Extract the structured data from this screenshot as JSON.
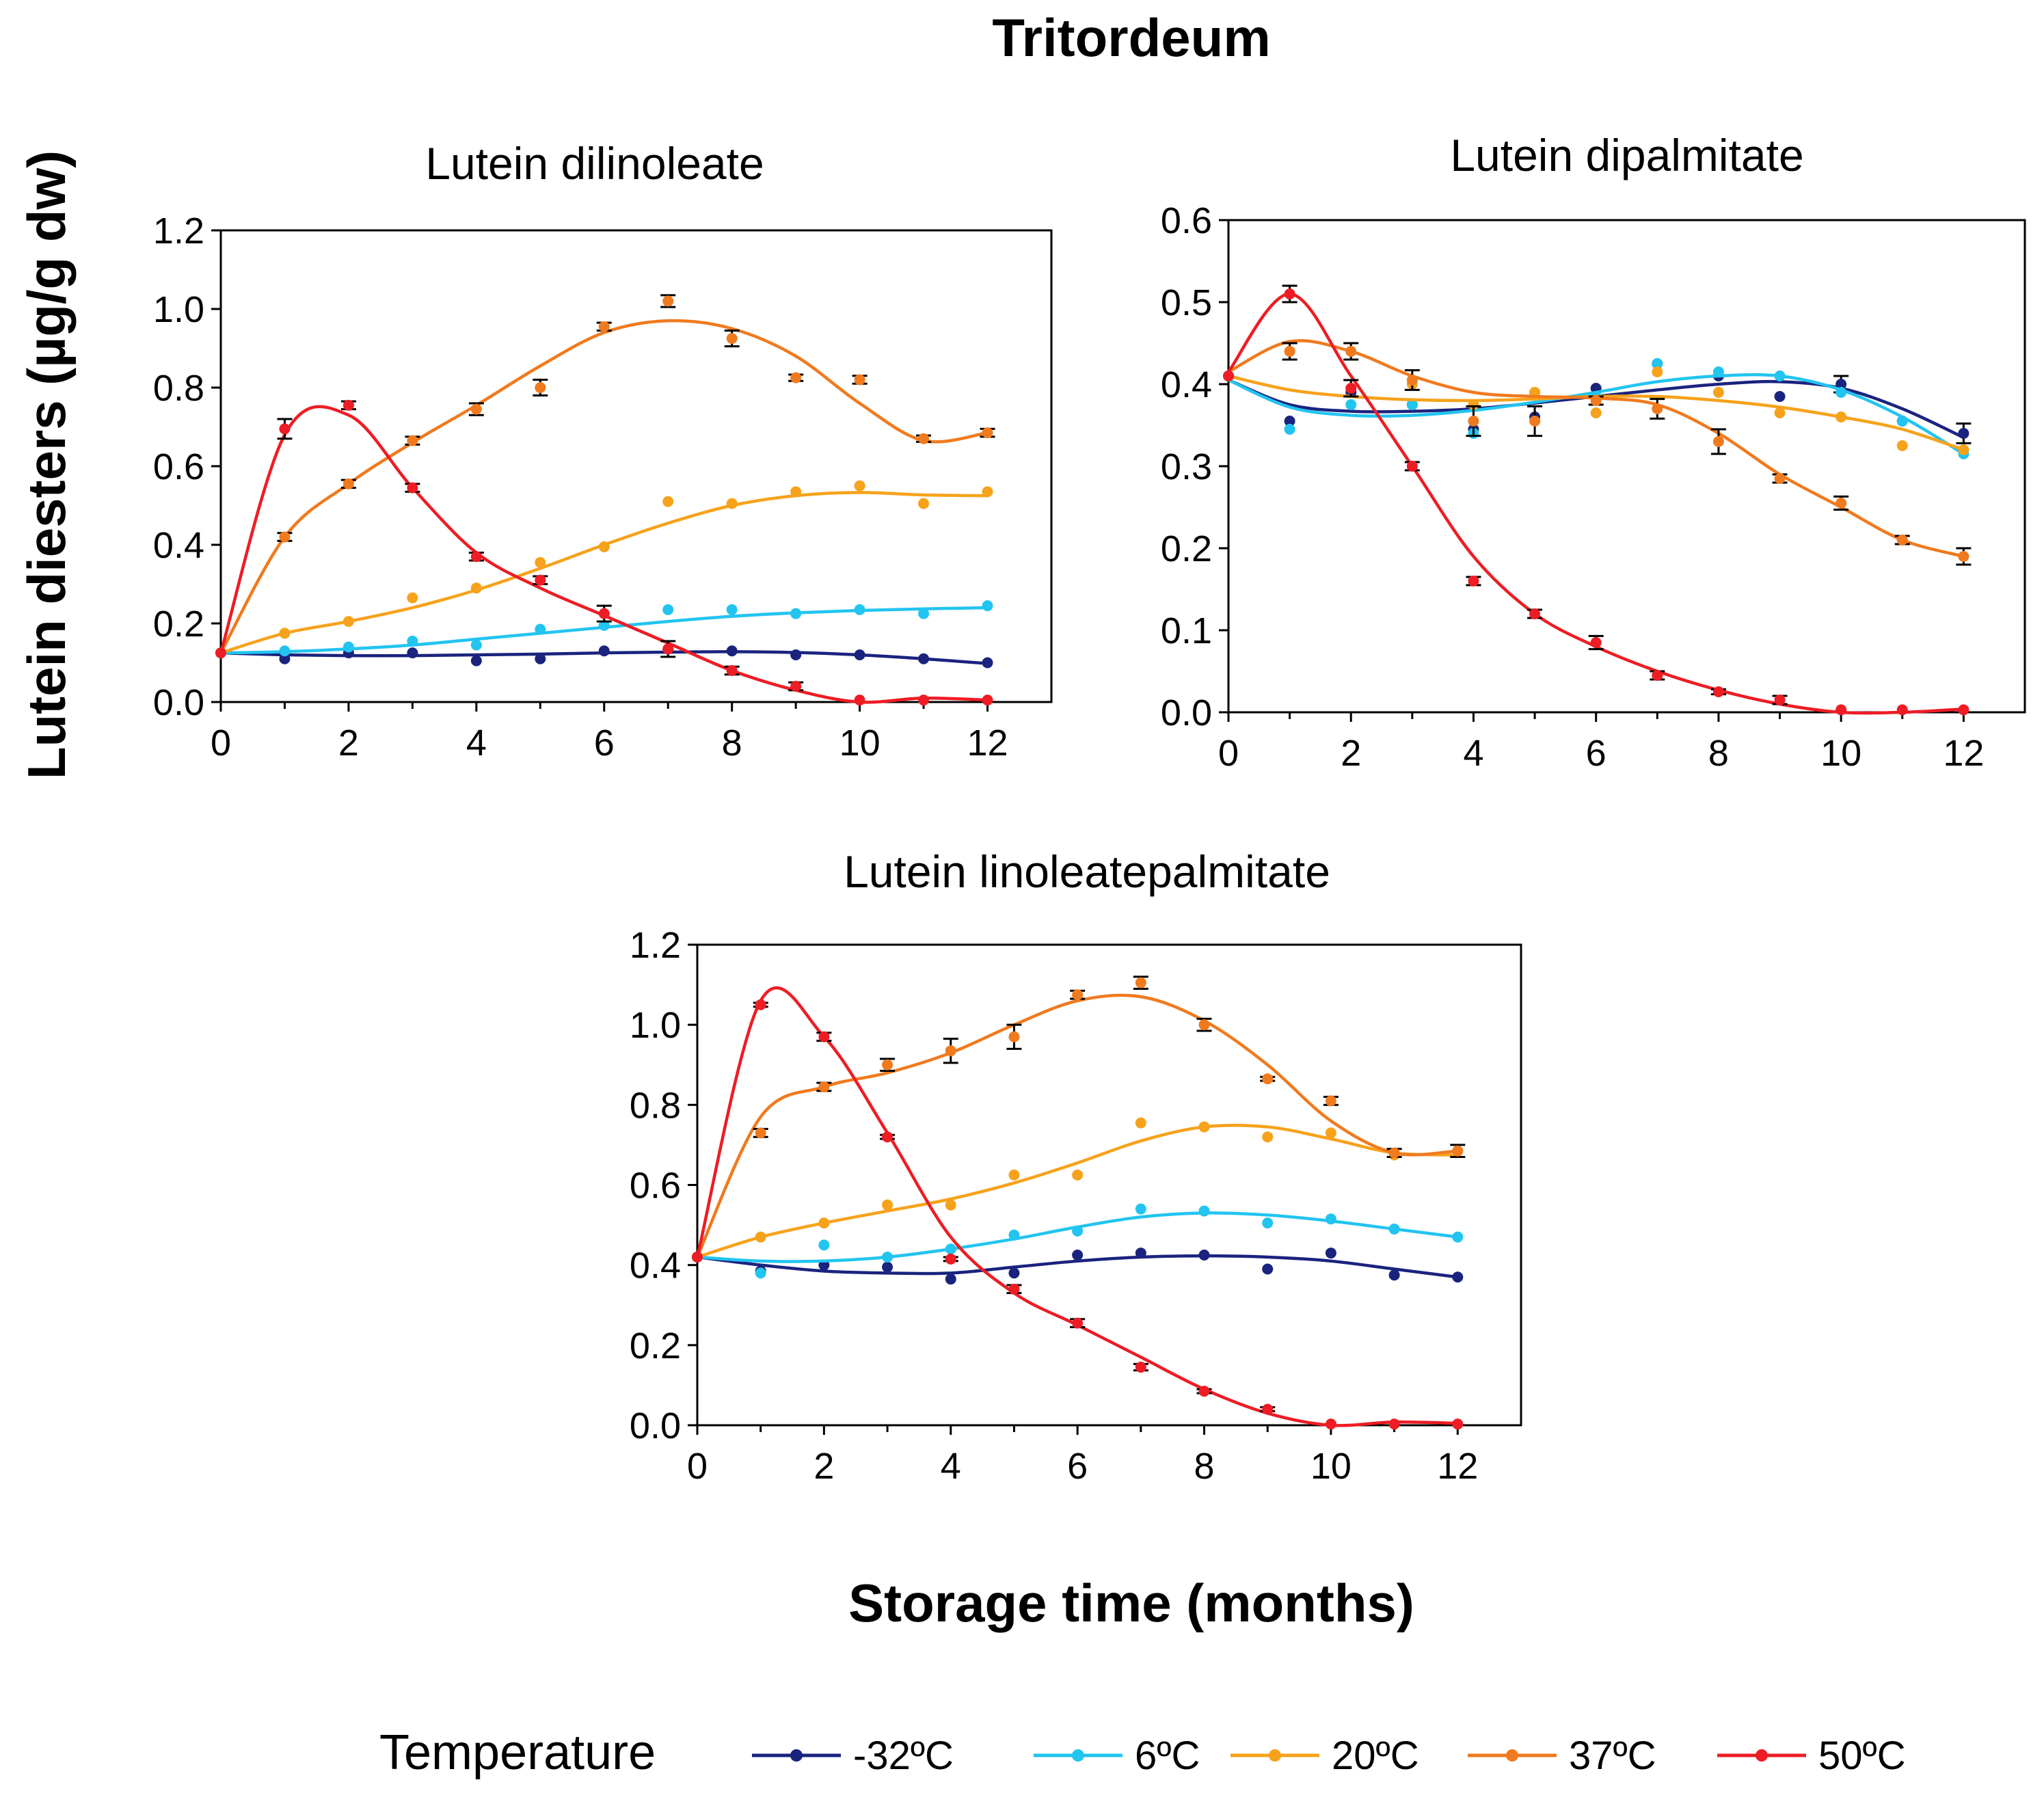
{
  "figure": {
    "title": "Tritordeum",
    "ylabel": "Lutein diesters (µg/g dw)",
    "xlabel": "Storage time (months)",
    "legend_title": "Temperature"
  },
  "series_meta": [
    {
      "name": "-32ºC",
      "color": "#1a237e"
    },
    {
      "name": "6ºC",
      "color": "#22c4f0"
    },
    {
      "name": "20ºC",
      "color": "#f7a21b"
    },
    {
      "name": "37ºC",
      "color": "#f07a1e"
    },
    {
      "name": "50ºC",
      "color": "#ee1c24"
    }
  ],
  "chart_data": [
    {
      "type": "scatter",
      "title": "Lutein dilinoleate",
      "xlabel": "Storage time (months)",
      "ylabel": "Lutein diesters (µg/g dw)",
      "xlim": [
        0,
        13
      ],
      "ylim": [
        0,
        1.2
      ],
      "xticks": [
        "0",
        "2",
        "4",
        "6",
        "8",
        "10",
        "12"
      ],
      "yticks": [
        "0.0",
        "0.2",
        "0.4",
        "0.6",
        "0.8",
        "1.0",
        "1.2"
      ],
      "x": [
        0,
        1,
        2,
        3,
        4,
        5,
        6,
        7,
        8,
        9,
        10,
        11,
        12
      ],
      "series": [
        {
          "name": "-32ºC",
          "values": [
            0.125,
            0.11,
            0.125,
            0.125,
            0.105,
            0.11,
            0.13,
            0.135,
            0.13,
            0.12,
            0.12,
            0.11,
            0.1
          ],
          "errors": [
            0,
            0,
            0,
            0,
            0,
            0,
            0,
            0,
            0,
            0,
            0,
            0,
            0
          ],
          "fit": [
            0.125,
            0.12,
            0.118,
            0.118,
            0.12,
            0.122,
            0.125,
            0.127,
            0.128,
            0.126,
            0.12,
            0.11,
            0.098
          ]
        },
        {
          "name": "6ºC",
          "values": [
            0.125,
            0.13,
            0.14,
            0.155,
            0.145,
            0.185,
            0.195,
            0.235,
            0.235,
            0.225,
            0.235,
            0.225,
            0.245
          ],
          "errors": [
            0,
            0,
            0,
            0,
            0,
            0,
            0,
            0,
            0,
            0,
            0,
            0,
            0
          ],
          "fit": [
            0.125,
            0.128,
            0.135,
            0.145,
            0.16,
            0.175,
            0.19,
            0.205,
            0.218,
            0.227,
            0.233,
            0.237,
            0.24
          ]
        },
        {
          "name": "20ºC",
          "values": [
            0.125,
            0.175,
            0.205,
            0.265,
            0.29,
            0.355,
            0.395,
            0.51,
            0.505,
            0.535,
            0.55,
            0.505,
            0.535
          ],
          "errors": [
            0,
            0,
            0,
            0,
            0,
            0,
            0,
            0,
            0,
            0,
            0,
            0,
            0
          ],
          "fit": [
            0.125,
            0.175,
            0.205,
            0.24,
            0.285,
            0.34,
            0.4,
            0.455,
            0.5,
            0.525,
            0.533,
            0.527,
            0.525
          ]
        },
        {
          "name": "37ºC",
          "values": [
            0.125,
            0.42,
            0.555,
            0.665,
            0.745,
            0.8,
            0.955,
            1.02,
            0.925,
            0.825,
            0.82,
            0.67,
            0.685
          ],
          "errors": [
            0,
            0.01,
            0.01,
            0.01,
            0.015,
            0.02,
            0.01,
            0.015,
            0.02,
            0.008,
            0.01,
            0.008,
            0.01
          ],
          "fit": [
            0.125,
            0.42,
            0.555,
            0.66,
            0.755,
            0.855,
            0.94,
            0.97,
            0.95,
            0.88,
            0.76,
            0.665,
            0.685
          ]
        },
        {
          "name": "50ºC",
          "values": [
            0.125,
            0.695,
            0.755,
            0.545,
            0.37,
            0.31,
            0.225,
            0.135,
            0.08,
            0.04,
            0.005,
            0.005,
            0.005
          ],
          "errors": [
            0,
            0.025,
            0.01,
            0.01,
            0.01,
            0.01,
            0.02,
            0.02,
            0.01,
            0.01,
            0,
            0,
            0
          ],
          "fit": [
            0.125,
            0.68,
            0.73,
            0.545,
            0.38,
            0.29,
            0.22,
            0.15,
            0.08,
            0.03,
            0.0,
            0.01,
            0.005
          ]
        }
      ]
    },
    {
      "type": "scatter",
      "title": "Lutein dipalmitate",
      "xlabel": "Storage time (months)",
      "ylabel": "Lutein diesters (µg/g dw)",
      "xlim": [
        0,
        13
      ],
      "ylim": [
        0,
        0.6
      ],
      "xticks": [
        "0",
        "2",
        "4",
        "6",
        "8",
        "10",
        "12"
      ],
      "yticks": [
        "0.0",
        "0.1",
        "0.2",
        "0.3",
        "0.4",
        "0.5",
        "0.6"
      ],
      "x": [
        0,
        1,
        2,
        3,
        4,
        5,
        6,
        7,
        8,
        9,
        10,
        11,
        12
      ],
      "series": [
        {
          "name": "-32ºC",
          "values": [
            0.41,
            0.355,
            0.39,
            0.375,
            0.345,
            0.36,
            0.395,
            0.425,
            0.41,
            0.385,
            0.4,
            0.355,
            0.34
          ],
          "errors": [
            0,
            0,
            0,
            0,
            0,
            0,
            0,
            0,
            0,
            0,
            0.01,
            0,
            0.012
          ],
          "fit": [
            0.405,
            0.375,
            0.367,
            0.367,
            0.37,
            0.377,
            0.385,
            0.393,
            0.4,
            0.403,
            0.395,
            0.37,
            0.335
          ]
        },
        {
          "name": "6ºC",
          "values": [
            0.41,
            0.345,
            0.375,
            0.375,
            0.34,
            0.39,
            0.385,
            0.425,
            0.415,
            0.41,
            0.39,
            0.355,
            0.315
          ],
          "errors": [
            0,
            0,
            0,
            0,
            0,
            0,
            0,
            0,
            0,
            0,
            0,
            0,
            0
          ],
          "fit": [
            0.405,
            0.372,
            0.362,
            0.362,
            0.368,
            0.378,
            0.39,
            0.403,
            0.41,
            0.41,
            0.393,
            0.36,
            0.315
          ]
        },
        {
          "name": "20ºC",
          "values": [
            0.41,
            0.44,
            0.395,
            0.4,
            0.375,
            0.39,
            0.365,
            0.415,
            0.39,
            0.365,
            0.36,
            0.325,
            0.32
          ],
          "errors": [
            0,
            0,
            0,
            0,
            0,
            0,
            0,
            0,
            0,
            0,
            0,
            0,
            0
          ],
          "fit": [
            0.41,
            0.393,
            0.385,
            0.381,
            0.38,
            0.382,
            0.385,
            0.385,
            0.38,
            0.372,
            0.36,
            0.345,
            0.32
          ]
        },
        {
          "name": "37ºC",
          "values": [
            0.41,
            0.44,
            0.44,
            0.405,
            0.355,
            0.355,
            0.38,
            0.37,
            0.33,
            0.285,
            0.255,
            0.21,
            0.19
          ],
          "errors": [
            0,
            0.01,
            0.01,
            0.012,
            0.018,
            0.018,
            0.005,
            0.012,
            0.015,
            0.005,
            0.008,
            0.005,
            0.01
          ],
          "fit": [
            0.415,
            0.452,
            0.44,
            0.41,
            0.39,
            0.385,
            0.383,
            0.375,
            0.34,
            0.29,
            0.25,
            0.21,
            0.19
          ]
        },
        {
          "name": "50ºC",
          "values": [
            0.41,
            0.51,
            0.395,
            0.3,
            0.16,
            0.12,
            0.085,
            0.045,
            0.025,
            0.015,
            0.003,
            0.003,
            0.003
          ],
          "errors": [
            0,
            0.01,
            0.01,
            0.005,
            0.005,
            0.005,
            0.008,
            0.005,
            0.003,
            0.005,
            0,
            0,
            0
          ],
          "fit": [
            0.415,
            0.51,
            0.41,
            0.3,
            0.19,
            0.12,
            0.08,
            0.05,
            0.027,
            0.01,
            0.0,
            0.0,
            0.004
          ]
        }
      ]
    },
    {
      "type": "scatter",
      "title": "Lutein linoleatepalmitate",
      "xlabel": "Storage time (months)",
      "ylabel": "Lutein diesters (µg/g dw)",
      "xlim": [
        0,
        13
      ],
      "ylim": [
        0,
        1.2
      ],
      "xticks": [
        "0",
        "2",
        "4",
        "6",
        "8",
        "10",
        "12"
      ],
      "yticks": [
        "0.0",
        "0.2",
        "0.4",
        "0.6",
        "0.8",
        "1.0",
        "1.2"
      ],
      "x": [
        0,
        1,
        2,
        3,
        4,
        5,
        6,
        7,
        8,
        9,
        10,
        11,
        12
      ],
      "series": [
        {
          "name": "-32ºC",
          "values": [
            0.42,
            0.385,
            0.4,
            0.395,
            0.365,
            0.38,
            0.425,
            0.43,
            0.425,
            0.39,
            0.43,
            0.375,
            0.37
          ],
          "errors": [
            0,
            0,
            0,
            0,
            0,
            0,
            0,
            0,
            0,
            0,
            0,
            0,
            0
          ],
          "fit": [
            0.42,
            0.4,
            0.385,
            0.38,
            0.38,
            0.395,
            0.41,
            0.42,
            0.423,
            0.42,
            0.41,
            0.39,
            0.37
          ]
        },
        {
          "name": "6ºC",
          "values": [
            0.42,
            0.38,
            0.45,
            0.42,
            0.44,
            0.475,
            0.485,
            0.54,
            0.535,
            0.505,
            0.515,
            0.49,
            0.47
          ],
          "errors": [
            0,
            0,
            0,
            0,
            0,
            0,
            0,
            0,
            0,
            0,
            0,
            0,
            0
          ],
          "fit": [
            0.42,
            0.41,
            0.41,
            0.42,
            0.44,
            0.465,
            0.495,
            0.52,
            0.53,
            0.525,
            0.51,
            0.49,
            0.47
          ]
        },
        {
          "name": "20ºC",
          "values": [
            0.42,
            0.47,
            0.505,
            0.55,
            0.55,
            0.625,
            0.625,
            0.755,
            0.745,
            0.72,
            0.73,
            0.675,
            0.685
          ],
          "errors": [
            0,
            0,
            0,
            0,
            0,
            0,
            0,
            0,
            0,
            0,
            0,
            0,
            0
          ],
          "fit": [
            0.42,
            0.47,
            0.505,
            0.535,
            0.565,
            0.605,
            0.655,
            0.71,
            0.745,
            0.745,
            0.715,
            0.68,
            0.675
          ]
        },
        {
          "name": "37ºC",
          "values": [
            0.42,
            0.73,
            0.845,
            0.9,
            0.935,
            0.97,
            1.075,
            1.105,
            1.0,
            0.865,
            0.81,
            0.68,
            0.685
          ],
          "errors": [
            0,
            0.01,
            0.01,
            0.015,
            0.03,
            0.03,
            0.01,
            0.015,
            0.015,
            0.005,
            0.01,
            0.01,
            0.015
          ],
          "fit": [
            0.42,
            0.77,
            0.845,
            0.88,
            0.93,
            1.0,
            1.06,
            1.07,
            1.01,
            0.9,
            0.76,
            0.68,
            0.685
          ]
        },
        {
          "name": "50ºC",
          "values": [
            0.42,
            1.05,
            0.97,
            0.72,
            0.415,
            0.34,
            0.255,
            0.145,
            0.085,
            0.04,
            0.003,
            0.003,
            0.003
          ],
          "errors": [
            0,
            0.005,
            0.01,
            0.005,
            0.005,
            0.01,
            0.01,
            0.008,
            0.005,
            0.005,
            0,
            0,
            0
          ],
          "fit": [
            0.42,
            1.06,
            0.97,
            0.73,
            0.47,
            0.33,
            0.25,
            0.17,
            0.09,
            0.03,
            0.0,
            0.008,
            0.005
          ]
        }
      ]
    }
  ]
}
